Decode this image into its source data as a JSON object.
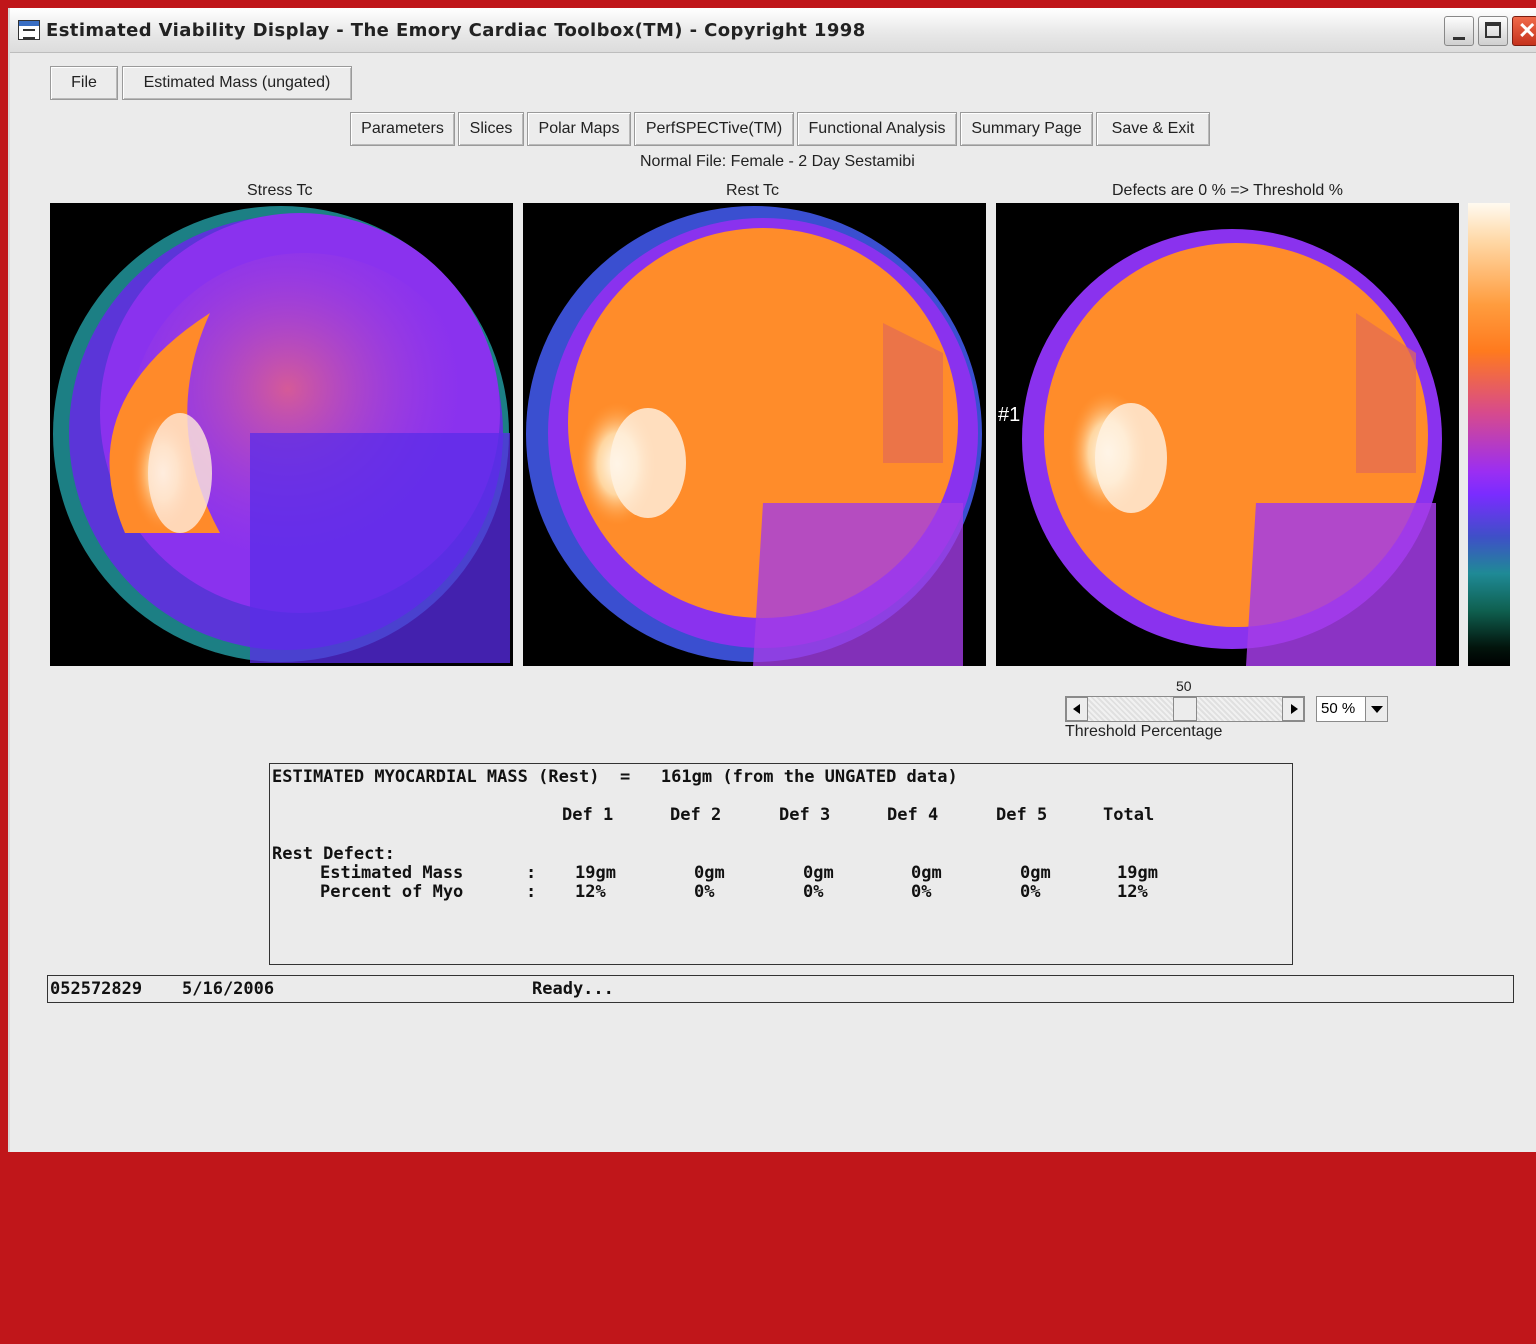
{
  "window": {
    "title": "Estimated Viability Display - The Emory Cardiac Toolbox(TM) - Copyright 1998"
  },
  "menu": {
    "file": "File",
    "estimated_mass": "Estimated Mass (ungated)"
  },
  "toolbar": {
    "parameters": "Parameters",
    "slices": "Slices",
    "polar_maps": "Polar Maps",
    "perfspective": "PerfSPECTive(TM)",
    "functional_analysis": "Functional Analysis",
    "summary_page": "Summary Page",
    "save_exit": "Save & Exit"
  },
  "normal_file": "Normal File:  Female - 2 Day Sestamibi",
  "maps": {
    "stress_label": "Stress Tc",
    "rest_label": "Rest Tc",
    "defects_label": "Defects are 0 % => Threshold %",
    "defect_marker": "#1"
  },
  "threshold": {
    "value_label": "50",
    "fraction": 0.5,
    "combo_value": "50 %",
    "caption": "Threshold Percentage"
  },
  "report": {
    "header": "ESTIMATED MYOCARDIAL MASS (Rest)  =   161gm (from the UNGATED data)",
    "columns": [
      "Def 1",
      "Def 2",
      "Def 3",
      "Def 4",
      "Def 5",
      "Total"
    ],
    "section": "Rest Defect:",
    "rows": [
      {
        "label": "Estimated Mass",
        "sep": ":",
        "values": [
          "19gm",
          "0gm",
          "0gm",
          "0gm",
          "0gm",
          "19gm"
        ]
      },
      {
        "label": "Percent of Myo",
        "sep": ":",
        "values": [
          "12%",
          "0%",
          "0%",
          "0%",
          "0%",
          "12%"
        ]
      }
    ]
  },
  "status": {
    "id": "052572829",
    "date": "5/16/2006",
    "message": "Ready..."
  },
  "colors": {
    "accent_red": "#c0161a",
    "window_bg": "#ebebeb"
  }
}
